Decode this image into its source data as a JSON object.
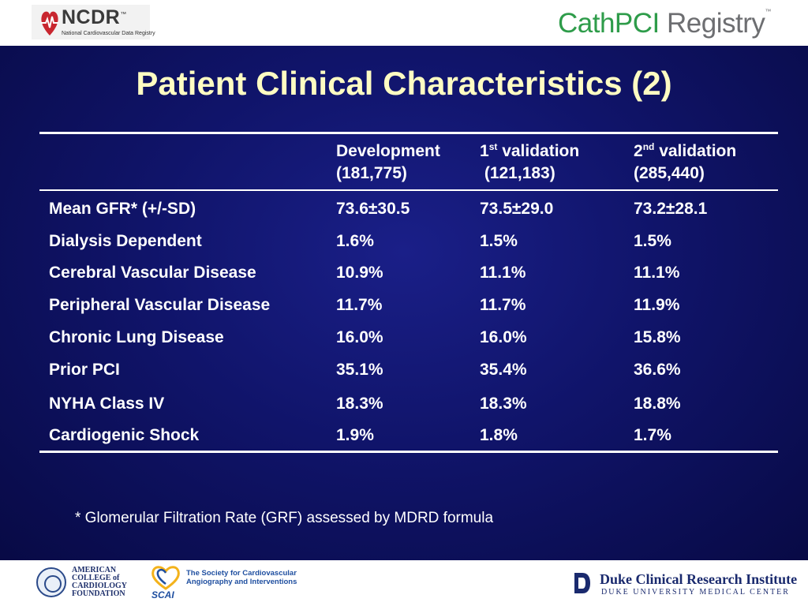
{
  "header": {
    "ncdr_name": "NCDR",
    "ncdr_tm": "™",
    "ncdr_subtitle": "National Cardiovascular Data Registry",
    "registry_part1": "CathPCI",
    "registry_part2": " Registry",
    "registry_tm": "™"
  },
  "title": "Patient Clinical Characteristics (2)",
  "table": {
    "columns": [
      {
        "line1": "Development",
        "line2": "(181,775)"
      },
      {
        "line1_num": "1",
        "line1_sup": "st",
        "line1_rest": " validation",
        "line2": " (121,183)"
      },
      {
        "line1_num": "2",
        "line1_sup": "nd",
        "line1_rest": " validation",
        "line2": "(285,440)"
      }
    ],
    "rows": [
      {
        "label": "Mean GFR* (+/-SD)",
        "dev": "73.6±30.5",
        "v1": "73.5±29.0",
        "v2": "73.2±28.1"
      },
      {
        "label": "Dialysis Dependent",
        "dev": "1.6%",
        "v1": "1.5%",
        "v2": "1.5%"
      },
      {
        "label": "Cerebral Vascular Disease",
        "dev": "10.9%",
        "v1": "11.1%",
        "v2": "11.1%"
      },
      {
        "label": "Peripheral Vascular Disease",
        "dev": "11.7%",
        "v1": "11.7%",
        "v2": "11.9%"
      },
      {
        "label": "Chronic Lung Disease",
        "dev": "16.0%",
        "v1": "16.0%",
        "v2": "15.8%"
      },
      {
        "label": "Prior PCI",
        "dev": "35.1%",
        "v1": "35.4%",
        "v2": "36.6%"
      },
      {
        "label": "NYHA Class IV",
        "dev": "18.3%",
        "v1": "18.3%",
        "v2": "18.8%"
      },
      {
        "label": "Cardiogenic Shock",
        "dev": "1.9%",
        "v1": "1.8%",
        "v2": "1.7%"
      }
    ]
  },
  "footnote": "* Glomerular Filtration Rate (GRF) assessed by MDRD formula",
  "footer": {
    "acc_text": "AMERICAN\nCOLLEGE of\nCARDIOLOGY\nFOUNDATION",
    "scai_name": "SCAI",
    "scai_text": "The Society for Cardiovascular\nAngiography and Interventions",
    "duke_title": "Duke Clinical Research Institute",
    "duke_subtitle": "DUKE UNIVERSITY MEDICAL CENTER"
  },
  "colors": {
    "background_navy": "#10146a",
    "title_yellow": "#fefcc2",
    "cathpci_green": "#2e9c4a",
    "registry_gray": "#6d6e71"
  }
}
